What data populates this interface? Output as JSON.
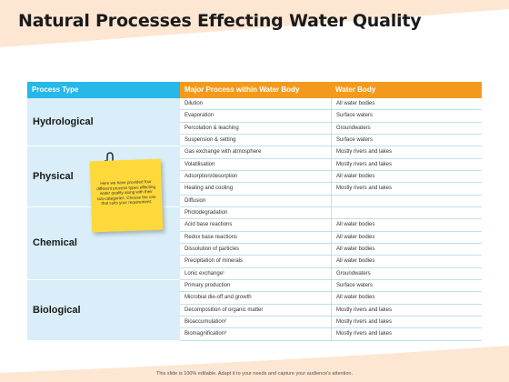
{
  "title": "Natural Processes Effecting Water Quality",
  "table": {
    "headers": [
      "Process Type",
      "Major Process within Water Body",
      "Water Body"
    ],
    "groups": [
      {
        "type": "Hydrological",
        "rows": [
          [
            "Dilution",
            "All water bodies"
          ],
          [
            "Evaporation",
            "Surface waters"
          ],
          [
            "Percolation & leaching",
            "Groundwaters"
          ],
          [
            "Suspension & setting",
            "Surface waters"
          ]
        ]
      },
      {
        "type": "Physical",
        "rows": [
          [
            "Gas exchange with atmosphere",
            "Mostly rivers and lakes"
          ],
          [
            "Volatilisation",
            "Mostly rivers and lakes"
          ],
          [
            "Adsorption/desorption",
            "All water bodies"
          ],
          [
            "Heating and cooling",
            "Mostly rivers and lakes"
          ],
          [
            "Diffusion",
            ""
          ]
        ]
      },
      {
        "type": "Chemical",
        "rows": [
          [
            "Photodegradation",
            ""
          ],
          [
            "Acid base reactions",
            "All water bodies"
          ],
          [
            "Redox base reactions",
            "All water bodies"
          ],
          [
            "Dissolution of particles",
            "All water bodies"
          ],
          [
            "Precipitation of minerals",
            "All water bodies"
          ],
          [
            "Lonic exchange¹",
            "Groundwaters"
          ]
        ]
      },
      {
        "type": "Biological",
        "rows": [
          [
            "Primary production",
            "Surface waters"
          ],
          [
            "Microbial die-off and growth",
            "All water bodies"
          ],
          [
            "Decomposition of organic matter",
            "Mostly rivers and lakes"
          ],
          [
            "Bioaccumulation²",
            "Mostly rivers and lakes"
          ],
          [
            "Biomagnification³",
            "Mostly rivers and lakes"
          ]
        ]
      }
    ]
  },
  "note": "Here we have provided four different process types effecting water quality along with their sub-categories. Choose the one that suits your requirement.",
  "footer": "This slide is 100% editable. Adapt it to your needs and capture your audience's attention.",
  "colors": {
    "header_blue": "#25b8e8",
    "header_orange": "#f39a1d",
    "group_fill": "#d9eef8",
    "note": "#ffd93a"
  }
}
